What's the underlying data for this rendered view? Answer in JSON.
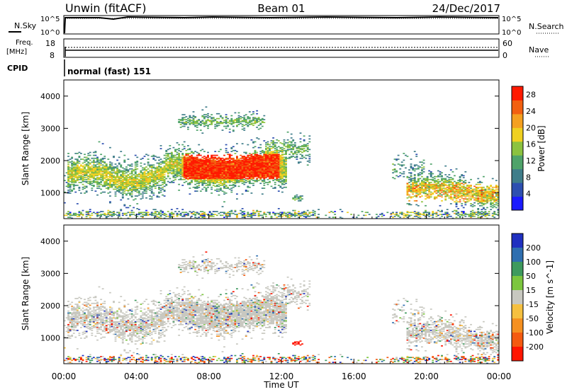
{
  "header": {
    "station": "Unwin (fitACF)",
    "beam": "Beam 01",
    "date": "24/Dec/2017"
  },
  "status_panels": {
    "nsky_label": "N.Sky",
    "nsearch_label": "N.Search",
    "nsky_ticks": [
      "10^5",
      "10^0"
    ],
    "nsearch_ticks": [
      "10^5",
      "10^0"
    ],
    "freq_label": [
      "Freq.",
      "[MHz]"
    ],
    "freq_ticks": [
      "18",
      "8"
    ],
    "nave_label": "Nave",
    "nave_ticks": [
      "60",
      "0"
    ],
    "cpid_label": "CPID",
    "cpid_value": "normal (fast) 151"
  },
  "chart_data": [
    {
      "type": "heatmap",
      "xlabel": "",
      "ylabel": "Slant Range [km]",
      "xlim": [
        0,
        24
      ],
      "ylim": [
        200,
        4500
      ],
      "yticks": [
        "1000",
        "2000",
        "3000",
        "4000"
      ],
      "colorbar": {
        "label": "Power [dB]",
        "ticks": [
          "4",
          "8",
          "12",
          "16",
          "20",
          "24",
          "28"
        ],
        "range": [
          0,
          30
        ]
      },
      "colors": [
        "#1a1aff",
        "#2d4fb0",
        "#3f7d8a",
        "#4fa36a",
        "#8cc23f",
        "#f0d020",
        "#f5a020",
        "#f26010",
        "#ff1a00"
      ]
    },
    {
      "type": "heatmap",
      "xlabel": "Time UT",
      "ylabel": "Slant Range [km]",
      "xlim": [
        0,
        24
      ],
      "ylim": [
        200,
        4500
      ],
      "xticks": [
        "00:00",
        "04:00",
        "08:00",
        "12:00",
        "16:00",
        "20:00",
        "00:00"
      ],
      "yticks": [
        "1000",
        "2000",
        "3000",
        "4000"
      ],
      "colorbar": {
        "label": "Velocity [m s^-1]",
        "ticks": [
          "200",
          "100",
          "50",
          "15",
          "-15",
          "-50",
          "-100",
          "-200"
        ]
      },
      "colors": [
        "#2030c0",
        "#2f6fb0",
        "#3e9a5e",
        "#7cc63e",
        "#c8c8c0",
        "#f5c040",
        "#f59020",
        "#f45a10",
        "#ff1500"
      ]
    }
  ]
}
